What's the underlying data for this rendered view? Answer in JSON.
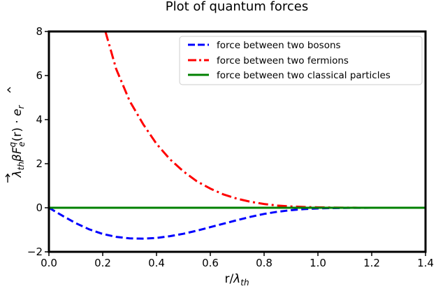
{
  "chart_data": {
    "type": "line",
    "title": "Plot of quantum forces",
    "xlabel": {
      "prefix": "r/",
      "symbol": "λ",
      "sub": "th"
    },
    "ylabel": {
      "lambda": "λ",
      "lambda_sub": "th",
      "beta": "β",
      "F": "F",
      "F_sup": "q",
      "F_sub": "e",
      "arg": "(r)",
      "dot": " · ",
      "e": "e",
      "e_sub": "r"
    },
    "xlim": [
      0.0,
      1.4
    ],
    "ylim": [
      -2,
      8
    ],
    "xticks": [
      0.0,
      0.2,
      0.4,
      0.6,
      0.8,
      1.0,
      1.2,
      1.4
    ],
    "xtick_labels": [
      "0.0",
      "0.2",
      "0.4",
      "0.6",
      "0.8",
      "1.0",
      "1.2",
      "1.4"
    ],
    "yticks": [
      -2,
      0,
      2,
      4,
      6,
      8
    ],
    "ytick_labels": [
      "−2",
      "0",
      "2",
      "4",
      "6",
      "8"
    ],
    "grid": false,
    "legend_position": "top-right",
    "series": [
      {
        "name": "force between two bosons",
        "color": "#0000ff",
        "linestyle": "dashed",
        "x": [
          0.0,
          0.05,
          0.1,
          0.15,
          0.2,
          0.25,
          0.3,
          0.35,
          0.4,
          0.45,
          0.5,
          0.55,
          0.6,
          0.65,
          0.7,
          0.75,
          0.8,
          0.85,
          0.9,
          0.95,
          1.0,
          1.05,
          1.1,
          1.15,
          1.2,
          1.3,
          1.4
        ],
        "y": [
          0.0,
          -0.36,
          -0.7,
          -0.98,
          -1.19,
          -1.32,
          -1.39,
          -1.4,
          -1.37,
          -1.29,
          -1.18,
          -1.04,
          -0.88,
          -0.72,
          -0.56,
          -0.41,
          -0.28,
          -0.18,
          -0.11,
          -0.06,
          -0.03,
          -0.015,
          -0.007,
          -0.003,
          -0.001,
          0.0,
          0.0
        ]
      },
      {
        "name": "force between two fermions",
        "color": "#ff0000",
        "linestyle": "dashdot",
        "x": [
          0.21,
          0.25,
          0.3,
          0.35,
          0.4,
          0.45,
          0.5,
          0.55,
          0.6,
          0.65,
          0.7,
          0.75,
          0.8,
          0.85,
          0.9,
          0.95,
          1.0,
          1.05,
          1.1,
          1.15,
          1.2,
          1.3,
          1.4
        ],
        "y": [
          8.0,
          6.3,
          4.85,
          3.8,
          2.9,
          2.2,
          1.65,
          1.2,
          0.87,
          0.6,
          0.41,
          0.27,
          0.17,
          0.1,
          0.06,
          0.035,
          0.02,
          0.01,
          0.005,
          0.002,
          0.001,
          0.0,
          0.0
        ]
      },
      {
        "name": "force between two classical particles",
        "color": "#008000",
        "linestyle": "solid",
        "x": [
          0.0,
          1.4
        ],
        "y": [
          0.0,
          0.0
        ]
      }
    ]
  }
}
